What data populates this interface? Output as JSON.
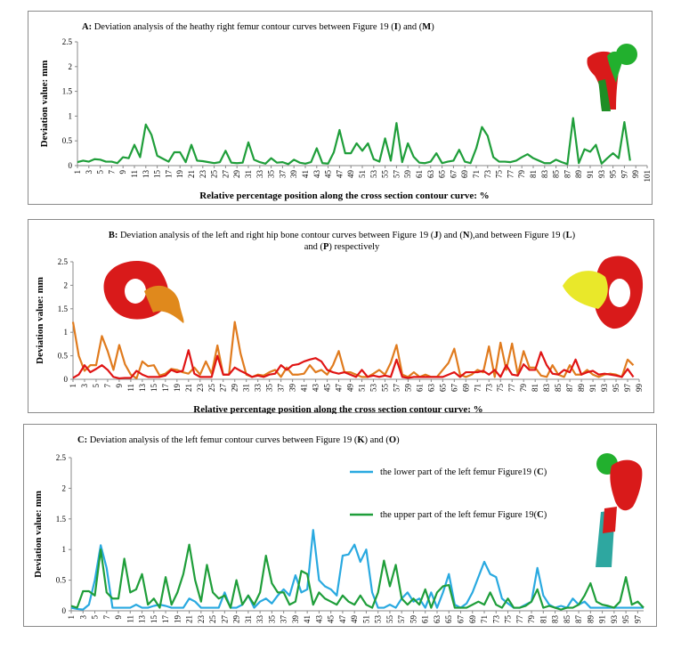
{
  "panels": [
    {
      "title_prefix": "A:",
      "title_parts": [
        {
          "t": " Deviation analysis of the heathy  right femur contour curves between Figure 19 (",
          "b": false
        },
        {
          "t": "I",
          "b": true
        },
        {
          "t": ") and  (",
          "b": false
        },
        {
          "t": "M",
          "b": true
        },
        {
          "t": ")",
          "b": false
        }
      ],
      "ylabel": "Deviation value:    mm",
      "xlabel": "Relative percentage position along the cross section contour curve:   %"
    },
    {
      "title_prefix": "B:",
      "title_line1": [
        {
          "t": " Deviation analysis of the left and right hip bone contour curves between Figure 19 (",
          "b": false
        },
        {
          "t": "J",
          "b": true
        },
        {
          "t": ") and (",
          "b": false
        },
        {
          "t": "N",
          "b": true
        },
        {
          "t": "),and between Figure 19 (",
          "b": false
        },
        {
          "t": "L",
          "b": true
        },
        {
          "t": ")",
          "b": false
        }
      ],
      "title_line2": [
        {
          "t": "and (",
          "b": false
        },
        {
          "t": "P",
          "b": true
        },
        {
          "t": ") respectively",
          "b": false
        }
      ],
      "ylabel": "Deviation value:    mm",
      "xlabel": "Relative percentage position along the cross section contour curve:   %"
    },
    {
      "title_prefix": "C:",
      "title_parts": [
        {
          "t": " Deviation analysis of the left femur contour curves between Figure 19 (",
          "b": false
        },
        {
          "t": "K",
          "b": true
        },
        {
          "t": ") and  (",
          "b": false
        },
        {
          "t": "O",
          "b": true
        },
        {
          "t": ")",
          "b": false
        }
      ],
      "ylabel": "Deviation value:    mm",
      "xlabel": "Relative percentage position along the cross section contour curve:   %"
    }
  ],
  "chart_data": [
    {
      "type": "line",
      "x": [
        1,
        2,
        3,
        4,
        5,
        6,
        7,
        8,
        9,
        10,
        11,
        12,
        13,
        14,
        15,
        16,
        17,
        18,
        19,
        20,
        21,
        22,
        23,
        24,
        25,
        26,
        27,
        28,
        29,
        30,
        31,
        32,
        33,
        34,
        35,
        36,
        37,
        38,
        39,
        40,
        41,
        42,
        43,
        44,
        45,
        46,
        47,
        48,
        49,
        50,
        51,
        52,
        53,
        54,
        55,
        56,
        57,
        58,
        59,
        60,
        61,
        62,
        63,
        64,
        65,
        66,
        67,
        68,
        69,
        70,
        71,
        72,
        73,
        74,
        75,
        76,
        77,
        78,
        79,
        80,
        81,
        82,
        83,
        84,
        85,
        86,
        87,
        88,
        89,
        90,
        91,
        92,
        93,
        94,
        95,
        96,
        97,
        98
      ],
      "x_ticks": [
        1,
        3,
        5,
        7,
        9,
        11,
        13,
        15,
        17,
        19,
        21,
        23,
        25,
        27,
        29,
        31,
        33,
        35,
        37,
        39,
        41,
        43,
        45,
        47,
        49,
        51,
        53,
        55,
        57,
        59,
        61,
        63,
        65,
        67,
        69,
        71,
        73,
        75,
        77,
        79,
        81,
        83,
        85,
        87,
        89,
        91,
        93,
        95,
        97,
        99,
        101
      ],
      "xlim": [
        1,
        101
      ],
      "ylim": [
        0,
        2.5
      ],
      "y_ticks": [
        "0",
        "0.5",
        "1",
        "1.5",
        "2",
        "2.5"
      ],
      "series": [
        {
          "color": "#1f9e3a",
          "values": [
            0.07,
            0.1,
            0.08,
            0.13,
            0.12,
            0.08,
            0.08,
            0.05,
            0.17,
            0.15,
            0.42,
            0.17,
            0.83,
            0.62,
            0.2,
            0.14,
            0.08,
            0.27,
            0.27,
            0.07,
            0.42,
            0.1,
            0.09,
            0.07,
            0.05,
            0.07,
            0.3,
            0.06,
            0.05,
            0.06,
            0.47,
            0.12,
            0.07,
            0.04,
            0.15,
            0.06,
            0.07,
            0.03,
            0.12,
            0.06,
            0.04,
            0.07,
            0.35,
            0.05,
            0.04,
            0.27,
            0.72,
            0.25,
            0.25,
            0.45,
            0.3,
            0.45,
            0.13,
            0.08,
            0.55,
            0.1,
            0.86,
            0.07,
            0.45,
            0.18,
            0.06,
            0.05,
            0.08,
            0.25,
            0.05,
            0.08,
            0.1,
            0.32,
            0.08,
            0.05,
            0.35,
            0.78,
            0.6,
            0.17,
            0.08,
            0.08,
            0.07,
            0.1,
            0.17,
            0.23,
            0.15,
            0.1,
            0.05,
            0.05,
            0.12,
            0.07,
            0.03,
            0.96,
            0.05,
            0.33,
            0.28,
            0.42,
            0.04,
            0.15,
            0.25,
            0.15,
            0.88,
            0.1
          ]
        }
      ]
    },
    {
      "type": "line",
      "x": [
        1,
        2,
        3,
        4,
        5,
        6,
        7,
        8,
        9,
        10,
        11,
        12,
        13,
        14,
        15,
        16,
        17,
        18,
        19,
        20,
        21,
        22,
        23,
        24,
        25,
        26,
        27,
        28,
        29,
        30,
        31,
        32,
        33,
        34,
        35,
        36,
        37,
        38,
        39,
        40,
        41,
        42,
        43,
        44,
        45,
        46,
        47,
        48,
        49,
        50,
        51,
        52,
        53,
        54,
        55,
        56,
        57,
        58,
        59,
        60,
        61,
        62,
        63,
        64,
        65,
        66,
        67,
        68,
        69,
        70,
        71,
        72,
        73,
        74,
        75,
        76,
        77,
        78,
        79,
        80,
        81,
        82,
        83,
        84,
        85,
        86,
        87,
        88,
        89,
        90,
        91,
        92,
        93,
        94,
        95,
        96,
        97,
        98
      ],
      "x_ticks": [
        1,
        3,
        5,
        7,
        9,
        11,
        13,
        15,
        17,
        19,
        21,
        23,
        25,
        27,
        29,
        31,
        33,
        35,
        37,
        39,
        41,
        43,
        45,
        47,
        49,
        51,
        53,
        55,
        57,
        59,
        61,
        63,
        65,
        67,
        69,
        71,
        73,
        75,
        77,
        79,
        81,
        83,
        85,
        87,
        89,
        91,
        93,
        95,
        97,
        99
      ],
      "xlim": [
        1,
        99
      ],
      "ylim": [
        0,
        2.5
      ],
      "y_ticks": [
        "0",
        "0.5",
        "1",
        "1.5",
        "2",
        "2.5"
      ],
      "series": [
        {
          "color": "#e07b1e",
          "values": [
            1.22,
            0.5,
            0.18,
            0.3,
            0.3,
            0.92,
            0.6,
            0.2,
            0.73,
            0.32,
            0.1,
            0.02,
            0.38,
            0.28,
            0.3,
            0.08,
            0.12,
            0.22,
            0.2,
            0.15,
            0.12,
            0.25,
            0.1,
            0.38,
            0.12,
            0.72,
            0.1,
            0.1,
            1.22,
            0.55,
            0.1,
            0.05,
            0.1,
            0.08,
            0.15,
            0.2,
            0.05,
            0.25,
            0.1,
            0.1,
            0.12,
            0.3,
            0.15,
            0.2,
            0.1,
            0.3,
            0.6,
            0.15,
            0.15,
            0.1,
            0.05,
            0.05,
            0.12,
            0.2,
            0.1,
            0.35,
            0.73,
            0.1,
            0.05,
            0.15,
            0.05,
            0.1,
            0.05,
            0.05,
            0.2,
            0.35,
            0.65,
            0.1,
            0.05,
            0.1,
            0.2,
            0.15,
            0.7,
            0.05,
            0.78,
            0.2,
            0.76,
            0.1,
            0.6,
            0.25,
            0.25,
            0.08,
            0.05,
            0.3,
            0.1,
            0.05,
            0.3,
            0.1,
            0.1,
            0.2,
            0.1,
            0.05,
            0.1,
            0.12,
            0.1,
            0.05,
            0.42,
            0.3
          ]
        },
        {
          "color": "#e01414",
          "values": [
            0.03,
            0.1,
            0.3,
            0.15,
            0.22,
            0.3,
            0.2,
            0.05,
            0.02,
            0.03,
            0.03,
            0.18,
            0.1,
            0.05,
            0.05,
            0.05,
            0.08,
            0.2,
            0.15,
            0.18,
            0.62,
            0.12,
            0.05,
            0.05,
            0.05,
            0.5,
            0.1,
            0.1,
            0.25,
            0.18,
            0.12,
            0.05,
            0.08,
            0.05,
            0.1,
            0.12,
            0.3,
            0.2,
            0.3,
            0.32,
            0.38,
            0.42,
            0.45,
            0.38,
            0.2,
            0.15,
            0.12,
            0.15,
            0.1,
            0.05,
            0.2,
            0.05,
            0.08,
            0.05,
            0.08,
            0.05,
            0.42,
            0.05,
            0.03,
            0.05,
            0.05,
            0.05,
            0.05,
            0.05,
            0.05,
            0.1,
            0.15,
            0.05,
            0.15,
            0.15,
            0.15,
            0.18,
            0.1,
            0.2,
            0.05,
            0.3,
            0.1,
            0.08,
            0.32,
            0.2,
            0.2,
            0.58,
            0.3,
            0.12,
            0.1,
            0.2,
            0.15,
            0.42,
            0.1,
            0.15,
            0.18,
            0.1,
            0.12,
            0.1,
            0.08,
            0.05,
            0.22,
            0.05
          ]
        }
      ]
    },
    {
      "type": "line",
      "x": [
        1,
        2,
        3,
        4,
        5,
        6,
        7,
        8,
        9,
        10,
        11,
        12,
        13,
        14,
        15,
        16,
        17,
        18,
        19,
        20,
        21,
        22,
        23,
        24,
        25,
        26,
        27,
        28,
        29,
        30,
        31,
        32,
        33,
        34,
        35,
        36,
        37,
        38,
        39,
        40,
        41,
        42,
        43,
        44,
        45,
        46,
        47,
        48,
        49,
        50,
        51,
        52,
        53,
        54,
        55,
        56,
        57,
        58,
        59,
        60,
        61,
        62,
        63,
        64,
        65,
        66,
        67,
        68,
        69,
        70,
        71,
        72,
        73,
        74,
        75,
        76,
        77,
        78,
        79,
        80,
        81,
        82,
        83,
        84,
        85,
        86,
        87,
        88,
        89,
        90,
        91,
        92,
        93,
        94,
        95,
        96,
        97,
        98
      ],
      "x_ticks": [
        1,
        3,
        5,
        7,
        9,
        11,
        13,
        15,
        17,
        19,
        21,
        23,
        25,
        27,
        29,
        31,
        33,
        35,
        37,
        39,
        41,
        43,
        45,
        47,
        49,
        51,
        53,
        55,
        57,
        59,
        61,
        63,
        65,
        67,
        69,
        71,
        73,
        75,
        77,
        79,
        81,
        83,
        85,
        87,
        89,
        91,
        93,
        95,
        97
      ],
      "xlim": [
        1,
        98
      ],
      "ylim": [
        0,
        2.5
      ],
      "y_ticks": [
        "0",
        "0.5",
        "1",
        "1.5",
        "2",
        "2.5"
      ],
      "legend_position": "top-right",
      "series": [
        {
          "name": "the lower part of the left femur Figure19 (C)",
          "name_parts": [
            {
              "t": "the lower part of the left femur Figure19 (",
              "b": false
            },
            {
              "t": "C",
              "b": true
            },
            {
              "t": ")",
              "b": false
            }
          ],
          "color": "#29a9e0",
          "values": [
            0.05,
            0.03,
            0.02,
            0.1,
            0.5,
            1.07,
            0.7,
            0.05,
            0.05,
            0.05,
            0.05,
            0.1,
            0.05,
            0.05,
            0.08,
            0.1,
            0.08,
            0.05,
            0.05,
            0.05,
            0.2,
            0.15,
            0.05,
            0.05,
            0.05,
            0.05,
            0.3,
            0.05,
            0.05,
            0.1,
            0.25,
            0.05,
            0.15,
            0.2,
            0.12,
            0.25,
            0.35,
            0.25,
            0.58,
            0.3,
            0.35,
            1.32,
            0.5,
            0.4,
            0.35,
            0.25,
            0.9,
            0.92,
            1.08,
            0.8,
            1.0,
            0.3,
            0.05,
            0.05,
            0.1,
            0.05,
            0.2,
            0.3,
            0.15,
            0.2,
            0.05,
            0.3,
            0.05,
            0.3,
            0.6,
            0.1,
            0.05,
            0.12,
            0.3,
            0.55,
            0.8,
            0.6,
            0.55,
            0.2,
            0.12,
            0.05,
            0.05,
            0.1,
            0.15,
            0.7,
            0.25,
            0.1,
            0.05,
            0.08,
            0.05,
            0.2,
            0.1,
            0.15,
            0.05,
            0.05,
            0.05,
            0.05,
            0.05,
            0.05,
            0.05,
            0.05,
            0.05,
            0.05
          ]
        },
        {
          "name": "the upper part of the left femur Figure 19(C)",
          "name_parts": [
            {
              "t": "the upper part of the left femur Figure 19(",
              "b": false
            },
            {
              "t": "C",
              "b": true
            },
            {
              "t": ")",
              "b": false
            }
          ],
          "color": "#1f9e3a",
          "values": [
            0.08,
            0.05,
            0.32,
            0.32,
            0.25,
            1.0,
            0.3,
            0.2,
            0.2,
            0.85,
            0.3,
            0.35,
            0.6,
            0.1,
            0.2,
            0.05,
            0.55,
            0.1,
            0.3,
            0.6,
            1.08,
            0.5,
            0.15,
            0.75,
            0.3,
            0.2,
            0.25,
            0.05,
            0.5,
            0.1,
            0.25,
            0.1,
            0.3,
            0.9,
            0.45,
            0.3,
            0.3,
            0.1,
            0.15,
            0.65,
            0.6,
            0.1,
            0.3,
            0.2,
            0.15,
            0.1,
            0.25,
            0.15,
            0.1,
            0.25,
            0.1,
            0.05,
            0.3,
            0.82,
            0.4,
            0.75,
            0.2,
            0.1,
            0.2,
            0.1,
            0.35,
            0.05,
            0.3,
            0.4,
            0.42,
            0.05,
            0.05,
            0.05,
            0.1,
            0.15,
            0.1,
            0.3,
            0.1,
            0.05,
            0.2,
            0.05,
            0.05,
            0.08,
            0.15,
            0.35,
            0.05,
            0.08,
            0.05,
            0.02,
            0.05,
            0.05,
            0.1,
            0.25,
            0.45,
            0.15,
            0.1,
            0.08,
            0.05,
            0.15,
            0.55,
            0.1,
            0.15,
            0.05
          ]
        }
      ]
    }
  ]
}
